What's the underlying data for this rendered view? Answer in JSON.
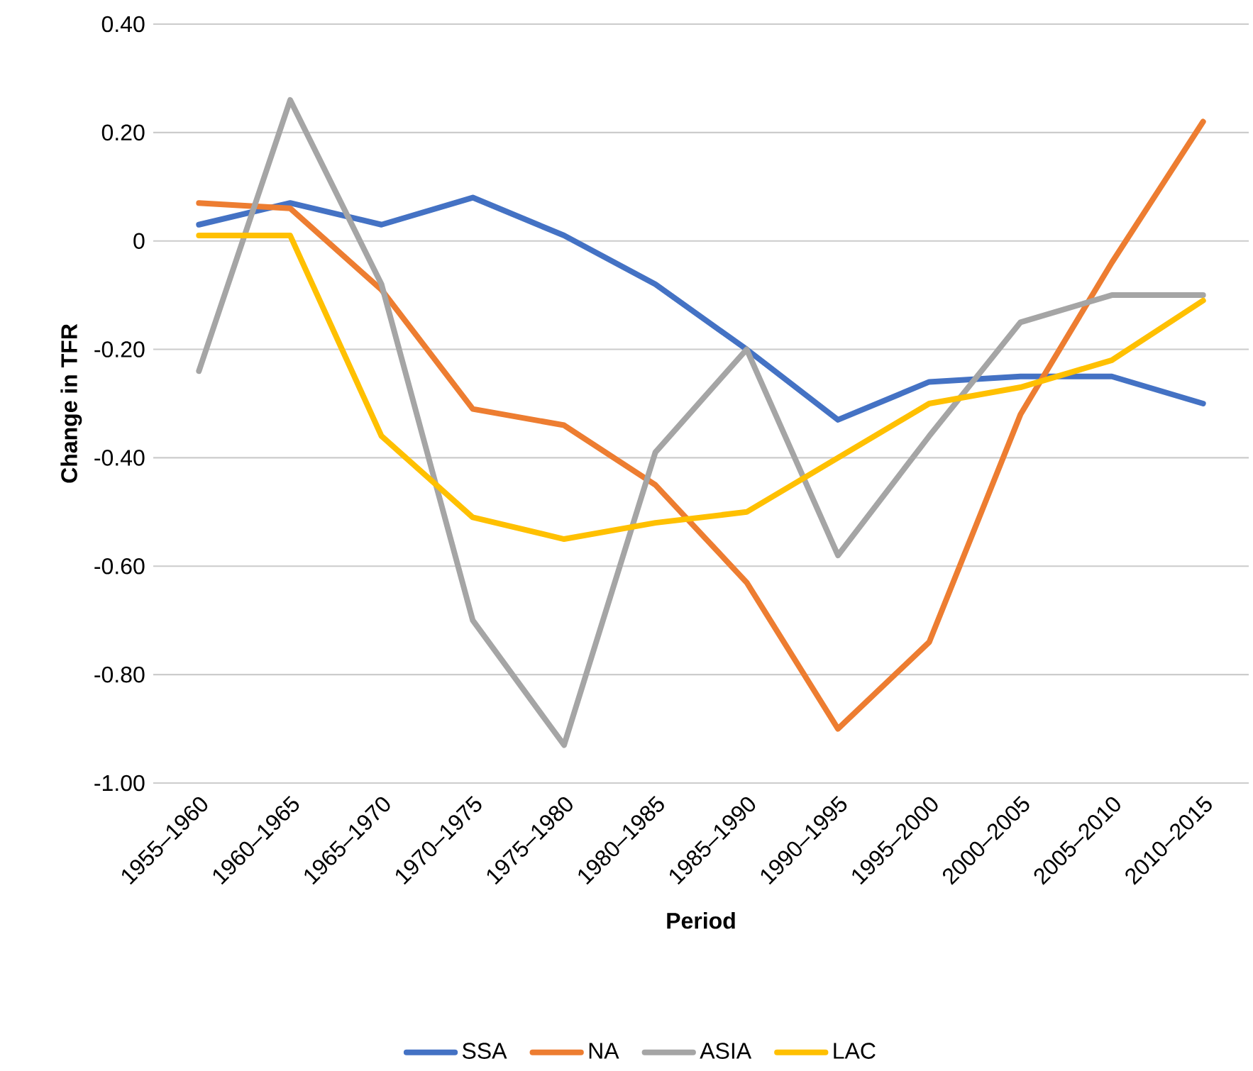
{
  "chart_data": {
    "type": "line",
    "xlabel": "Period",
    "ylabel": "Change in TFR",
    "categories": [
      "1955–1960",
      "1960–1965",
      "1965–1970",
      "1970–1975",
      "1975–1980",
      "1980–1985",
      "1985–1990",
      "1990–1995",
      "1995–2000",
      "2000–2005",
      "2005–2010",
      "2010–2015"
    ],
    "series": [
      {
        "name": "SSA",
        "color": "#4472c4",
        "values": [
          0.03,
          0.07,
          0.03,
          0.08,
          0.01,
          -0.08,
          -0.2,
          -0.33,
          -0.26,
          -0.25,
          -0.25,
          -0.3
        ]
      },
      {
        "name": "NA",
        "color": "#ed7d31",
        "values": [
          0.07,
          0.06,
          -0.09,
          -0.31,
          -0.34,
          -0.45,
          -0.63,
          -0.9,
          -0.74,
          -0.32,
          -0.04,
          0.22
        ]
      },
      {
        "name": "ASIA",
        "color": "#a5a5a5",
        "values": [
          -0.24,
          0.26,
          -0.08,
          -0.7,
          -0.93,
          -0.39,
          -0.2,
          -0.58,
          -0.36,
          -0.15,
          -0.1,
          -0.1
        ]
      },
      {
        "name": "LAC",
        "color": "#ffc000",
        "values": [
          0.01,
          0.01,
          -0.36,
          -0.51,
          -0.55,
          -0.52,
          -0.5,
          -0.4,
          -0.3,
          -0.27,
          -0.22,
          -0.11
        ]
      }
    ],
    "ylim": [
      -1.0,
      0.4
    ],
    "yticks": [
      {
        "value": -1.0,
        "label": "-1.00"
      },
      {
        "value": -0.8,
        "label": "-0.80"
      },
      {
        "value": -0.6,
        "label": "-0.60"
      },
      {
        "value": -0.4,
        "label": "-0.40"
      },
      {
        "value": -0.2,
        "label": "-0.20"
      },
      0,
      {
        "value": 0.2,
        "label": "0.20"
      },
      {
        "value": 0.4,
        "label": "0.40"
      }
    ],
    "grid": "y",
    "legend": "bottom",
    "marker": "none",
    "line_style": "solid"
  }
}
